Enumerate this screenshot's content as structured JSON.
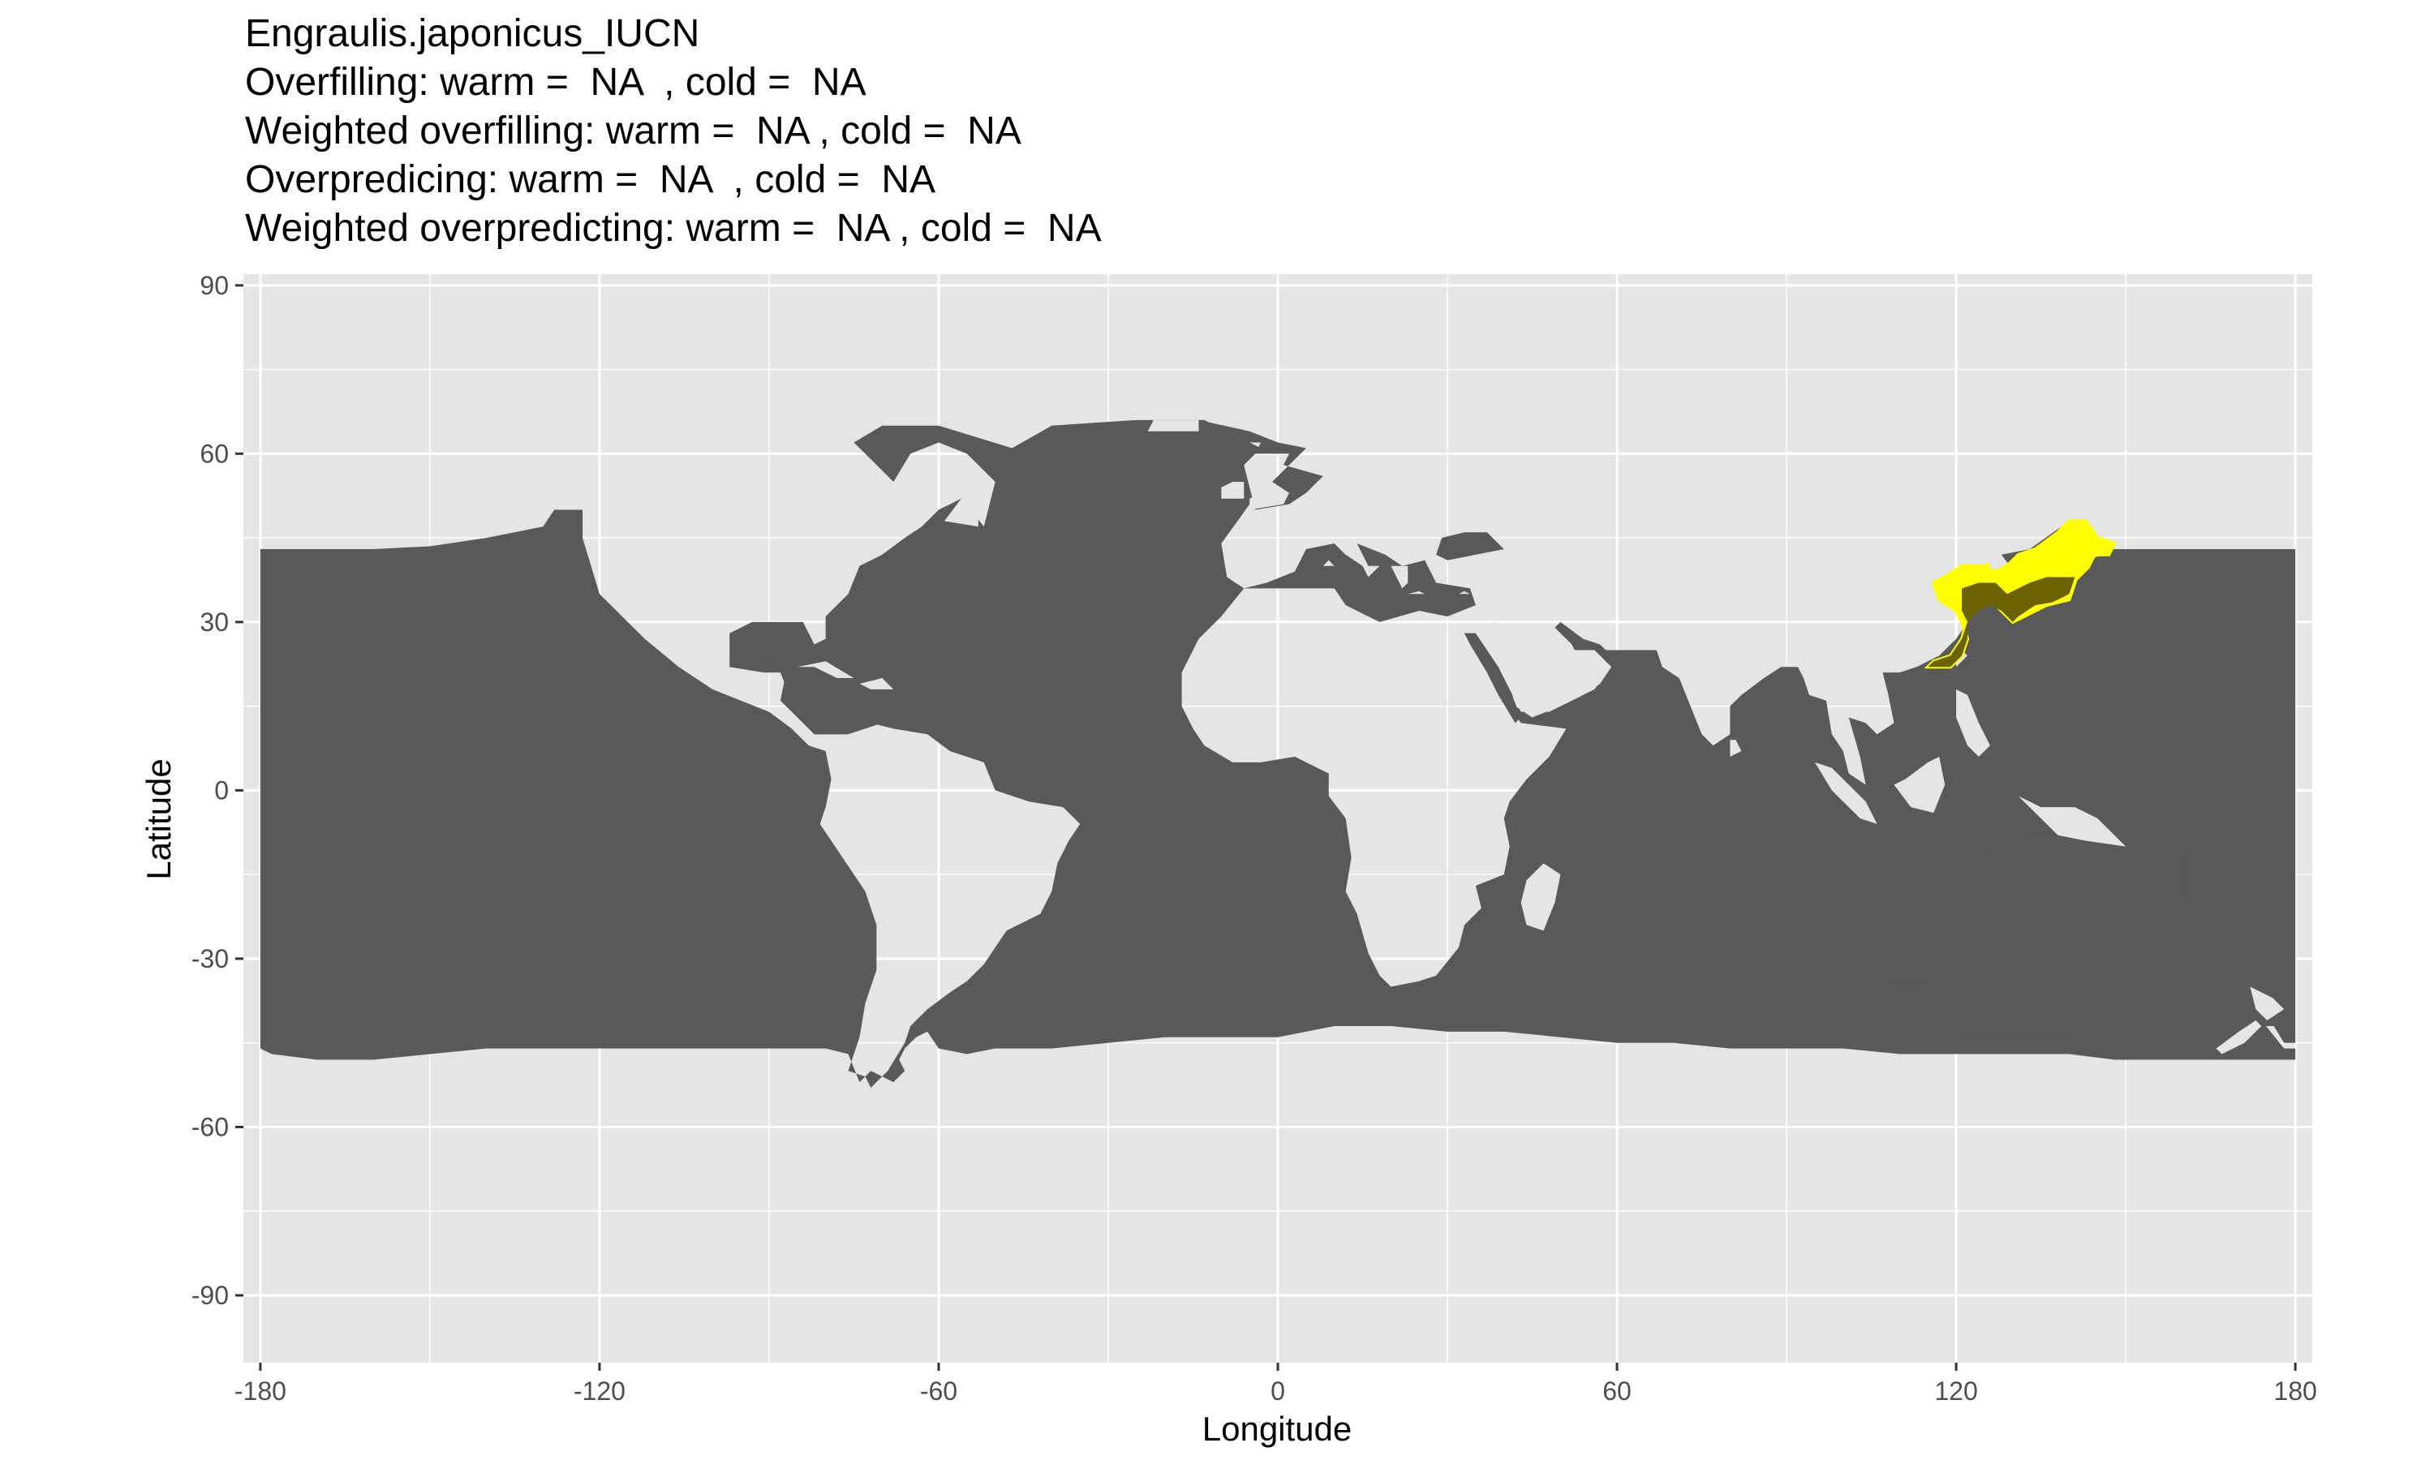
{
  "title": {
    "lines": [
      "Engraulis.japonicus_IUCN",
      "Overfilling: warm =  NA  , cold =  NA",
      "Weighted overfilling: warm =  NA , cold =  NA",
      "Overpredicing: warm =  NA  , cold =  NA",
      "Weighted overpredicting: warm =  NA , cold =  NA"
    ]
  },
  "axes": {
    "xlabel": "Longitude",
    "ylabel": "Latitude",
    "xlim": [
      -183,
      183
    ],
    "ylim": [
      -102,
      92
    ],
    "xticks": [
      -180,
      -120,
      -60,
      0,
      60,
      120,
      180
    ],
    "yticks": [
      -90,
      -60,
      -30,
      0,
      30,
      60,
      90
    ]
  },
  "colors": {
    "panel": "#e5e5e5",
    "grid": "#ffffff",
    "ocean": "#595959",
    "range_overlap": "#6b6300",
    "range_outline": "#ffff00"
  },
  "chart_data": {
    "type": "raster map",
    "layers": [
      {
        "name": "ocean",
        "color": "#595959"
      },
      {
        "name": "range",
        "color": "#ffff00"
      }
    ],
    "range_extent": {
      "lon": [
        115,
        148
      ],
      "lat": [
        21,
        48
      ]
    }
  }
}
